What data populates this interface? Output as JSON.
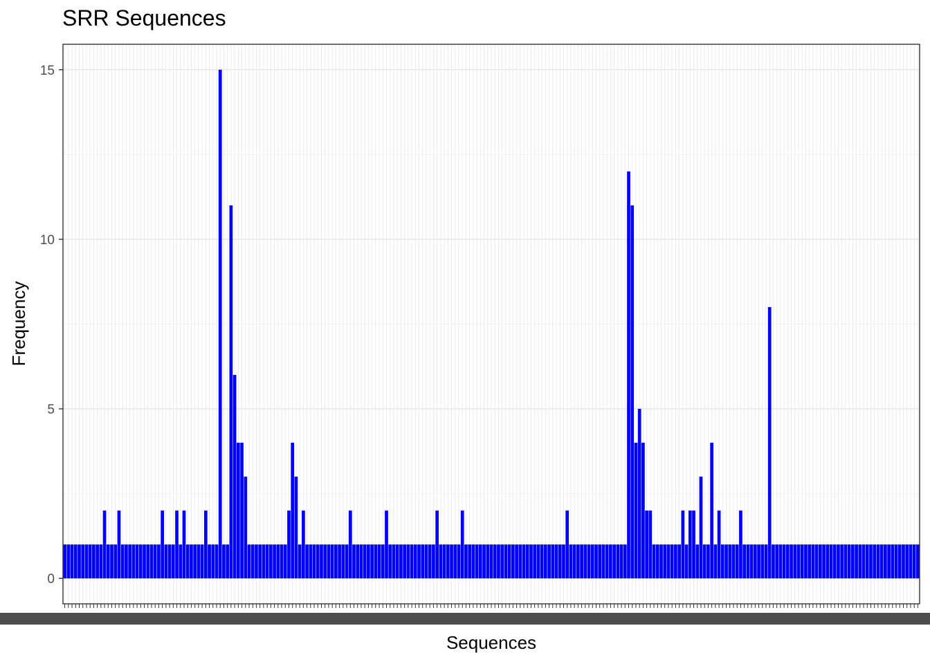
{
  "chart_data": {
    "type": "bar",
    "title": "SRR Sequences",
    "xlabel": "Sequences",
    "ylabel": "Frequency",
    "ylim": [
      -0.75,
      15.75
    ],
    "yticks": [
      0,
      5,
      10,
      15
    ],
    "grid": true,
    "bar_color": "#0000ff",
    "x_tick_labels": "overplotted, illegible",
    "series": [
      {
        "values": [
          1,
          1,
          1,
          1,
          1,
          1,
          1,
          1,
          1,
          1,
          1,
          2,
          1,
          1,
          1,
          2,
          1,
          1,
          1,
          1,
          1,
          1,
          1,
          1,
          1,
          1,
          1,
          2,
          1,
          1,
          1,
          2,
          1,
          2,
          1,
          1,
          1,
          1,
          1,
          2,
          1,
          1,
          1,
          15,
          1,
          1,
          11,
          6,
          4,
          4,
          3,
          1,
          1,
          1,
          1,
          1,
          1,
          1,
          1,
          1,
          1,
          1,
          2,
          4,
          3,
          1,
          2,
          1,
          1,
          1,
          1,
          1,
          1,
          1,
          1,
          1,
          1,
          1,
          1,
          2,
          1,
          1,
          1,
          1,
          1,
          1,
          1,
          1,
          1,
          2,
          1,
          1,
          1,
          1,
          1,
          1,
          1,
          1,
          1,
          1,
          1,
          1,
          1,
          2,
          1,
          1,
          1,
          1,
          1,
          1,
          2,
          1,
          1,
          1,
          1,
          1,
          1,
          1,
          1,
          1,
          1,
          1,
          1,
          1,
          1,
          1,
          1,
          1,
          1,
          1,
          1,
          1,
          1,
          1,
          1,
          1,
          1,
          1,
          1,
          2,
          1,
          1,
          1,
          1,
          1,
          1,
          1,
          1,
          1,
          1,
          1,
          1,
          1,
          1,
          1,
          1,
          12,
          11,
          4,
          5,
          4,
          2,
          2,
          1,
          1,
          1,
          1,
          1,
          1,
          1,
          1,
          2,
          1,
          2,
          2,
          1,
          3,
          1,
          1,
          4,
          1,
          2,
          1,
          1,
          1,
          1,
          1,
          2,
          1,
          1,
          1,
          1,
          1,
          1,
          1,
          8,
          1,
          1,
          1,
          1,
          1,
          1,
          1,
          1,
          1,
          1,
          1,
          1,
          1,
          1,
          1,
          1,
          1,
          1,
          1,
          1,
          1,
          1,
          1,
          1,
          1,
          1,
          1,
          1,
          1,
          1,
          1,
          1,
          1,
          1,
          1,
          1,
          1,
          1,
          1,
          1,
          1
        ]
      }
    ]
  }
}
